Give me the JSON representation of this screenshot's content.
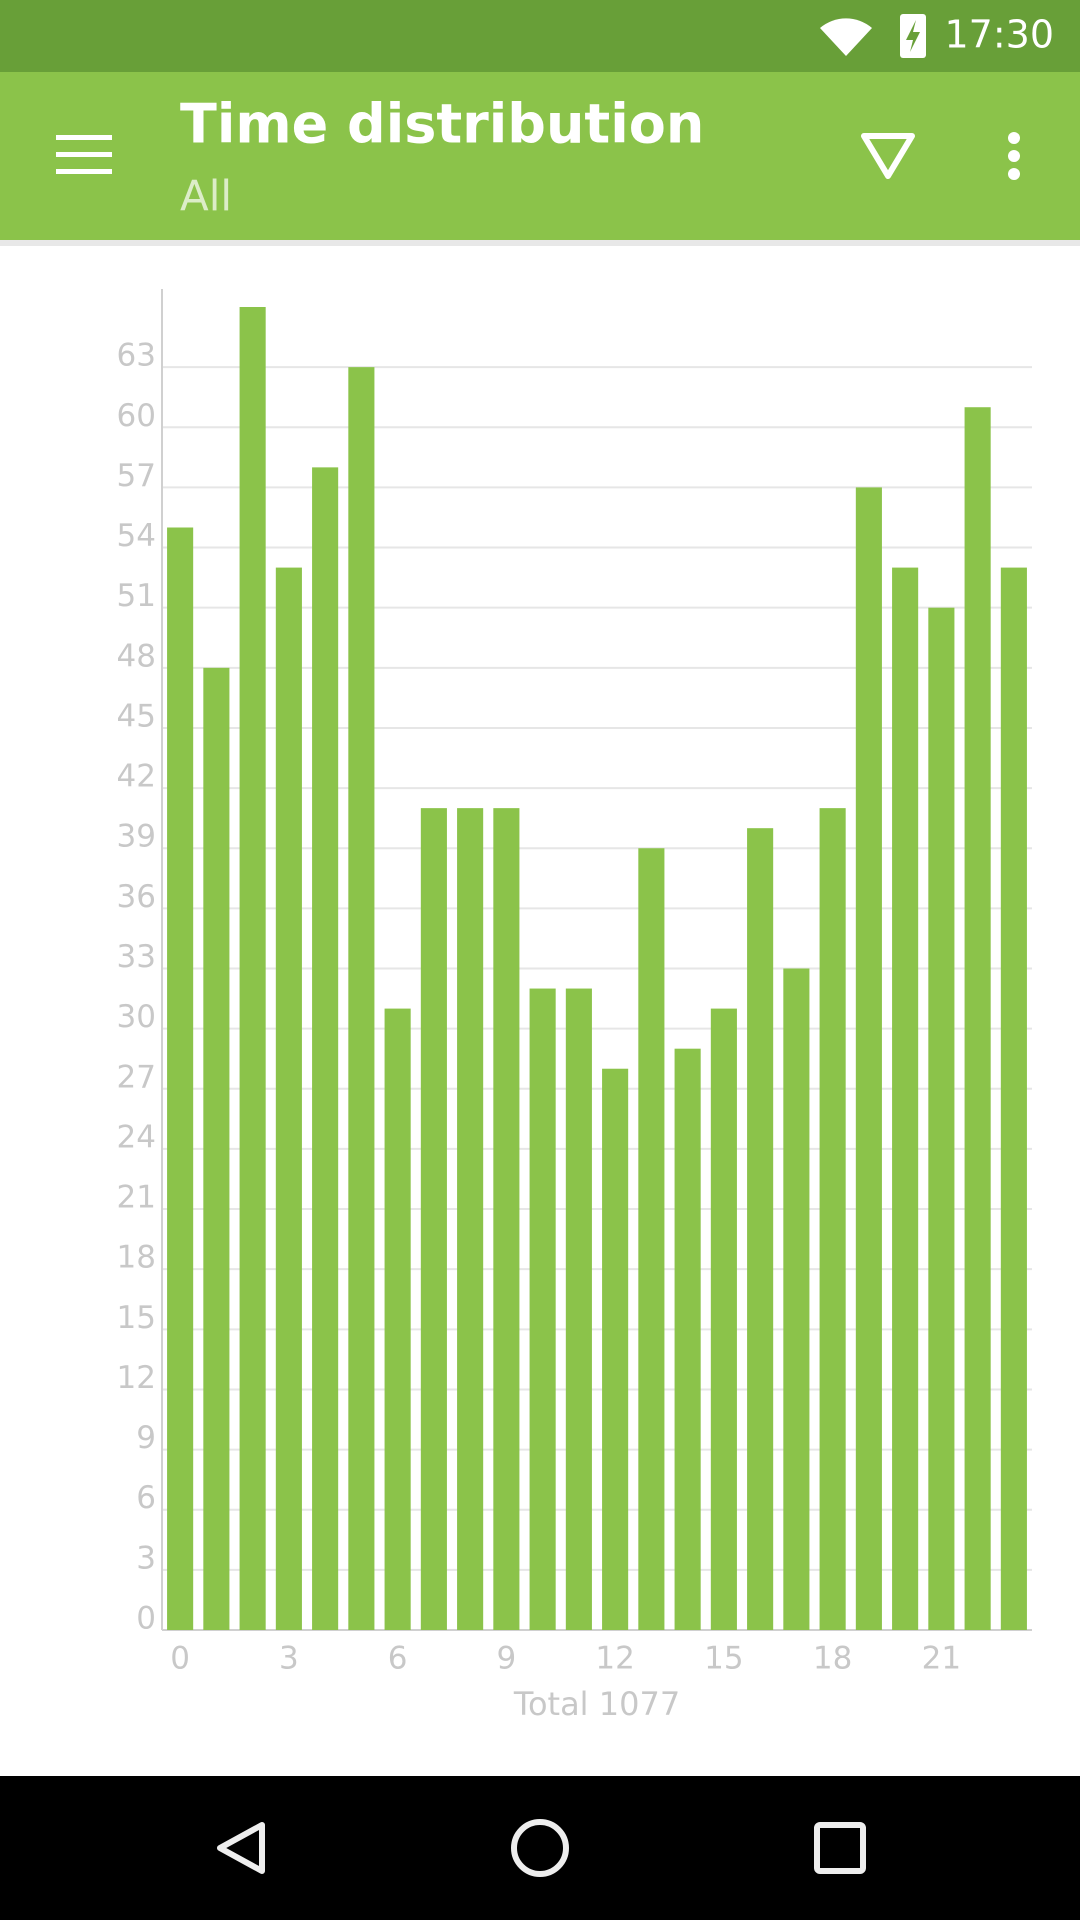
{
  "status_bar": {
    "time": "17:30"
  },
  "app_bar": {
    "title": "Time distribution",
    "subtitle": "All"
  },
  "chart_data": {
    "type": "bar",
    "categories": [
      "0",
      null,
      null,
      "3",
      null,
      null,
      "6",
      null,
      null,
      "9",
      null,
      null,
      "12",
      null,
      null,
      "15",
      null,
      null,
      "18",
      null,
      null,
      "21",
      null,
      null
    ],
    "values": [
      55,
      48,
      66,
      53,
      58,
      63,
      31,
      41,
      41,
      41,
      32,
      32,
      28,
      39,
      29,
      31,
      40,
      33,
      41,
      57,
      53,
      51,
      61,
      53
    ],
    "color": "#8bc34a",
    "x_label": "Total 1077",
    "ylim": [
      0,
      66
    ],
    "yticks": [
      0,
      3,
      6,
      9,
      12,
      15,
      18,
      21,
      24,
      27,
      30,
      33,
      36,
      39,
      42,
      45,
      48,
      51,
      54,
      57,
      60,
      63
    ],
    "grid": true
  }
}
